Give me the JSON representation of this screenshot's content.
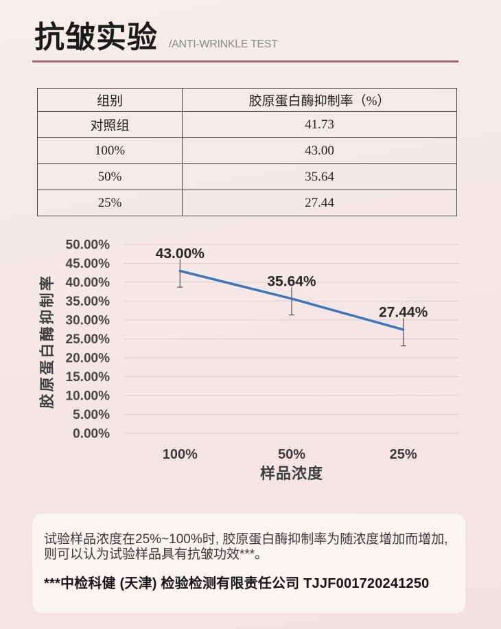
{
  "header": {
    "title": "抗皱实验",
    "subtitle": "/ANTI-WRINKLE TEST",
    "underline_color": "#a26974"
  },
  "table": {
    "headers": [
      "组别",
      "胶原蛋白酶抑制率（%）"
    ],
    "rows": [
      [
        "对照组",
        "41.73"
      ],
      [
        "100%",
        "43.00"
      ],
      [
        "50%",
        "35.64"
      ],
      [
        "25%",
        "27.44"
      ]
    ]
  },
  "chart_data": {
    "type": "line",
    "categories": [
      "100%",
      "50%",
      "25%"
    ],
    "values": [
      43.0,
      35.64,
      27.44
    ],
    "data_labels": [
      "43.00%",
      "35.64%",
      "27.44%"
    ],
    "error_minus": [
      4.3,
      4.3,
      4.3
    ],
    "error_plus": [
      4.3,
      4.3,
      4.3
    ],
    "ylabel": "胶原蛋白酶抑制率",
    "xlabel": "样品浓度",
    "ylim": [
      0,
      50
    ],
    "ytick_step": 5,
    "grid": true,
    "legend": false,
    "line_color": "#3e76b9",
    "gridline_color": "#dccfd1",
    "error_bar_color": "#5a5251",
    "tick_label_color": "#4a4446",
    "data_label_color": "#262626"
  },
  "note": {
    "lines": [
      "试验样品浓度在25%~100%时, 胶原蛋白酶抑制率为随浓度增加而增加,",
      "则可以认为试验样品具有抗皱功效***。"
    ],
    "certification": "***中检科健 (天津) 检验检测有限责任公司 TJJF001720241250"
  }
}
